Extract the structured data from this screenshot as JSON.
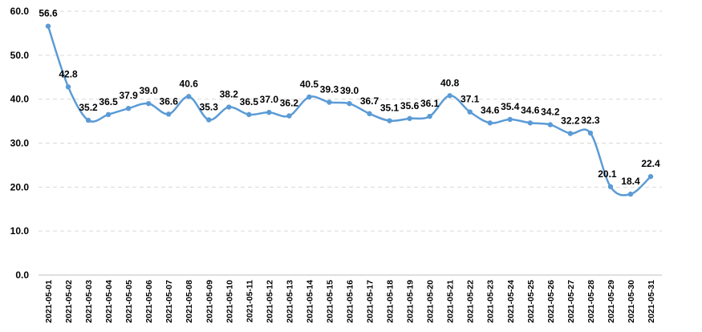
{
  "chart_data": {
    "type": "line",
    "title": "",
    "xlabel": "",
    "ylabel": "",
    "ylim": [
      0,
      60
    ],
    "y_ticks": [
      "0.0",
      "10.0",
      "20.0",
      "30.0",
      "40.0",
      "50.0",
      "60.0"
    ],
    "y_tick_values": [
      0,
      10,
      20,
      30,
      40,
      50,
      60
    ],
    "grid": "horizontal dashed",
    "legend": "none",
    "line_color": "#5b9bd5",
    "grid_color": "#d9d9d9",
    "x": [
      "2021-05-01",
      "2021-05-02",
      "2021-05-03",
      "2021-05-04",
      "2021-05-05",
      "2021-05-06",
      "2021-05-07",
      "2021-05-08",
      "2021-05-09",
      "2021-05-10",
      "2021-05-11",
      "2021-05-12",
      "2021-05-13",
      "2021-05-14",
      "2021-05-15",
      "2021-05-16",
      "2021-05-17",
      "2021-05-18",
      "2021-05-19",
      "2021-05-20",
      "2021-05-21",
      "2021-05-22",
      "2021-05-23",
      "2021-05-24",
      "2021-05-25",
      "2021-05-26",
      "2021-05-27",
      "2021-05-28",
      "2021-05-29",
      "2021-05-30",
      "2021-05-31"
    ],
    "values": [
      56.6,
      42.8,
      35.2,
      36.5,
      37.9,
      39.0,
      36.6,
      40.6,
      35.3,
      38.2,
      36.5,
      37.0,
      36.2,
      40.5,
      39.3,
      39.0,
      36.7,
      35.1,
      35.6,
      36.1,
      40.8,
      37.1,
      34.6,
      35.4,
      34.6,
      34.2,
      32.2,
      32.3,
      20.1,
      18.4,
      22.4
    ],
    "data_labels": [
      "56.6",
      "42.8",
      "35.2",
      "36.5",
      "37.9",
      "39.0",
      "36.6",
      "40.6",
      "35.3",
      "38.2",
      "36.5",
      "37.0",
      "36.2",
      "40.5",
      "39.3",
      "39.0",
      "36.7",
      "35.1",
      "35.6",
      "36.1",
      "40.8",
      "37.1",
      "34.6",
      "35.4",
      "34.6",
      "34.2",
      "32.2",
      "32.3",
      "20.1",
      "18.4",
      "22.4"
    ]
  }
}
